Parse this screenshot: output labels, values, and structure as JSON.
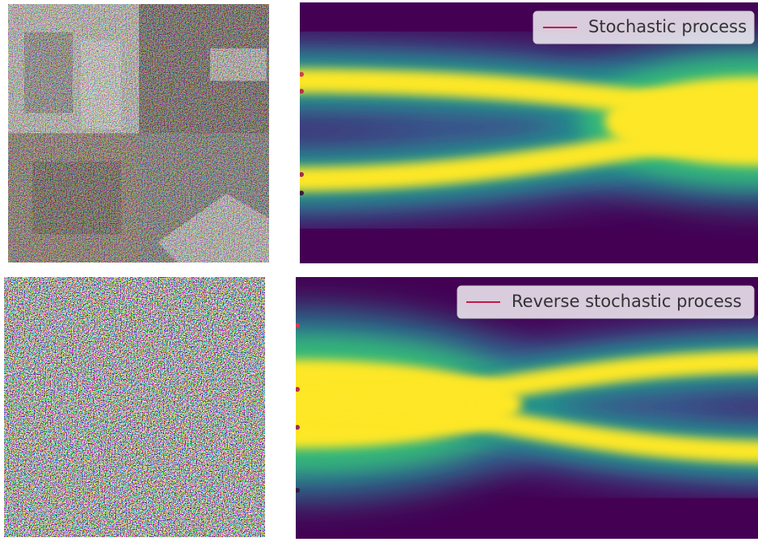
{
  "panels": [
    {
      "legend": "Stochastic process"
    },
    {
      "legend": "Reverse stochastic process"
    }
  ]
}
